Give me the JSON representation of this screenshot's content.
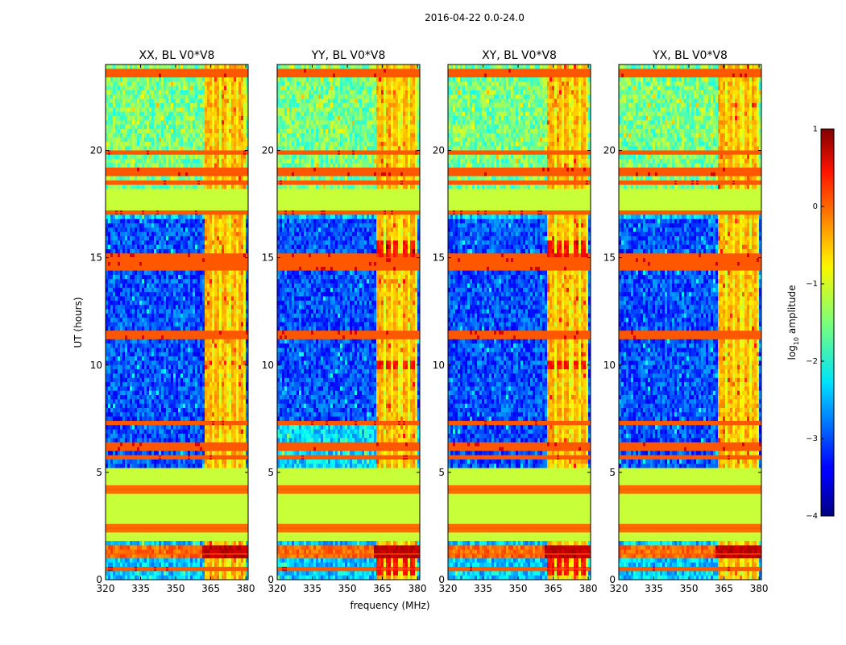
{
  "figure_title": "2016-04-22 0.0-24.0",
  "chart_data": {
    "type": "heatmap",
    "colormap": "jet",
    "x_axis": {
      "label": "frequency (MHz)",
      "range": [
        320,
        381
      ],
      "ticks": [
        320,
        335,
        350,
        365,
        380
      ],
      "tick_labels": [
        "320",
        "335",
        "350",
        "365",
        "380"
      ]
    },
    "y_axis": {
      "label": "UT (hours)",
      "range": [
        0,
        24
      ],
      "ticks": [
        0,
        5,
        10,
        15,
        20
      ],
      "tick_labels": [
        "0",
        "5",
        "10",
        "15",
        "20"
      ]
    },
    "colorbar": {
      "label": "log10 amplitude",
      "label_main": "log",
      "label_sub": "10",
      "label_rest": " amplitude",
      "range": [
        -4,
        1
      ],
      "ticks": [
        1,
        0,
        -1,
        -2,
        -3,
        -4
      ],
      "tick_labels": [
        "1",
        "0",
        "−1",
        "−2",
        "−3",
        "−4"
      ]
    },
    "panels": [
      {
        "title": "XX, BL V0*V8",
        "polarization": "XX"
      },
      {
        "title": "YY, BL V0*V8",
        "polarization": "YY"
      },
      {
        "title": "XY, BL V0*V8",
        "polarization": "XY"
      },
      {
        "title": "YX, BL V0*V8",
        "polarization": "YX"
      }
    ],
    "strong_channel_band_MHz": [
      362,
      380
    ],
    "flat_flagged_intervals_UT": [
      [
        1.8,
        5.3
      ],
      [
        17.2,
        18.3
      ]
    ],
    "highlighted_times_UT": [
      0.5,
      1.2,
      2.4,
      4.2,
      5.7,
      6.2,
      7.3,
      11.4,
      14.6,
      15.0,
      17.1,
      18.5,
      19.0,
      19.9,
      23.6
    ],
    "strong_channels_MHz": [
      364,
      367.5,
      371,
      374.5,
      378
    ]
  }
}
